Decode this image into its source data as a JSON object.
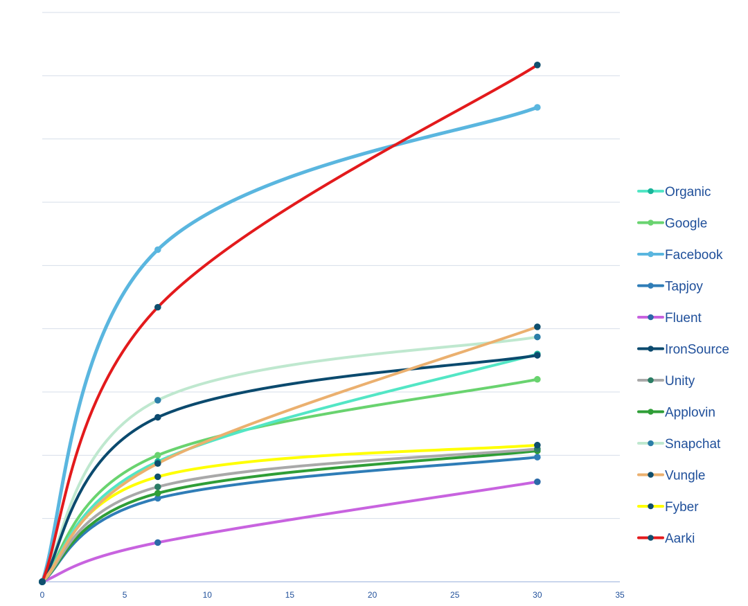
{
  "chart_data": {
    "type": "line",
    "title": "",
    "xlabel": "",
    "ylabel": "",
    "xlim": [
      0,
      35
    ],
    "ylim": [
      0,
      9
    ],
    "x_ticks": [
      0,
      5,
      10,
      15,
      20,
      25,
      30,
      35
    ],
    "x_tick_labels": [
      "0",
      "5",
      "10",
      "15",
      "20",
      "25",
      "30",
      "35"
    ],
    "y_ticks": [
      1,
      2,
      3,
      4,
      5,
      6,
      7,
      8,
      9
    ],
    "grid": true,
    "legend_position": "right",
    "curve": "smooth",
    "series": [
      {
        "name": "Organic",
        "color": "#53e6c5",
        "marker_color": "#19b59a",
        "x": [
          0,
          7,
          30
        ],
        "y": [
          0,
          1.9,
          3.6
        ]
      },
      {
        "name": "Google",
        "color": "#69d36f",
        "marker_color": "#69d36f",
        "x": [
          0,
          7,
          30
        ],
        "y": [
          0,
          2.0,
          3.2
        ]
      },
      {
        "name": "Facebook",
        "color": "#5ab6df",
        "marker_color": "#5ab6df",
        "x": [
          0,
          7,
          30
        ],
        "y": [
          0,
          5.25,
          7.5
        ]
      },
      {
        "name": "Tapjoy",
        "color": "#2f7db7",
        "marker_color": "#2f7db7",
        "x": [
          0,
          7,
          30
        ],
        "y": [
          0,
          1.32,
          1.97
        ]
      },
      {
        "name": "Fluent",
        "color": "#c863df",
        "marker_color": "#2b6aa8",
        "x": [
          0,
          7,
          30
        ],
        "y": [
          0,
          0.62,
          1.58
        ]
      },
      {
        "name": "IronSource",
        "color": "#0b4a6e",
        "marker_color": "#0b4a6e",
        "x": [
          0,
          7,
          30
        ],
        "y": [
          0,
          2.6,
          3.58
        ]
      },
      {
        "name": "Unity",
        "color": "#a9a9a9",
        "marker_color": "#2b7d64",
        "x": [
          0,
          7,
          30
        ],
        "y": [
          0,
          1.5,
          2.1
        ]
      },
      {
        "name": "Applovin",
        "color": "#2f9e37",
        "marker_color": "#2f9e37",
        "x": [
          0,
          7,
          30
        ],
        "y": [
          0,
          1.4,
          2.07
        ]
      },
      {
        "name": "Snapchat",
        "color": "#bfe8cf",
        "marker_color": "#2b7ea8",
        "x": [
          0,
          7,
          30
        ],
        "y": [
          0,
          2.87,
          3.87
        ]
      },
      {
        "name": "Vungle",
        "color": "#ebb06f",
        "marker_color": "#0f4f6e",
        "x": [
          0,
          7,
          30
        ],
        "y": [
          0,
          1.87,
          4.03
        ]
      },
      {
        "name": "Fyber",
        "color": "#ffff00",
        "marker_color": "#0f4f6e",
        "x": [
          0,
          7,
          30
        ],
        "y": [
          0,
          1.66,
          2.16
        ]
      },
      {
        "name": "Aarki",
        "color": "#e31a1c",
        "marker_color": "#0f4f6e",
        "x": [
          0,
          7,
          30
        ],
        "y": [
          0,
          4.34,
          8.17
        ]
      }
    ]
  }
}
